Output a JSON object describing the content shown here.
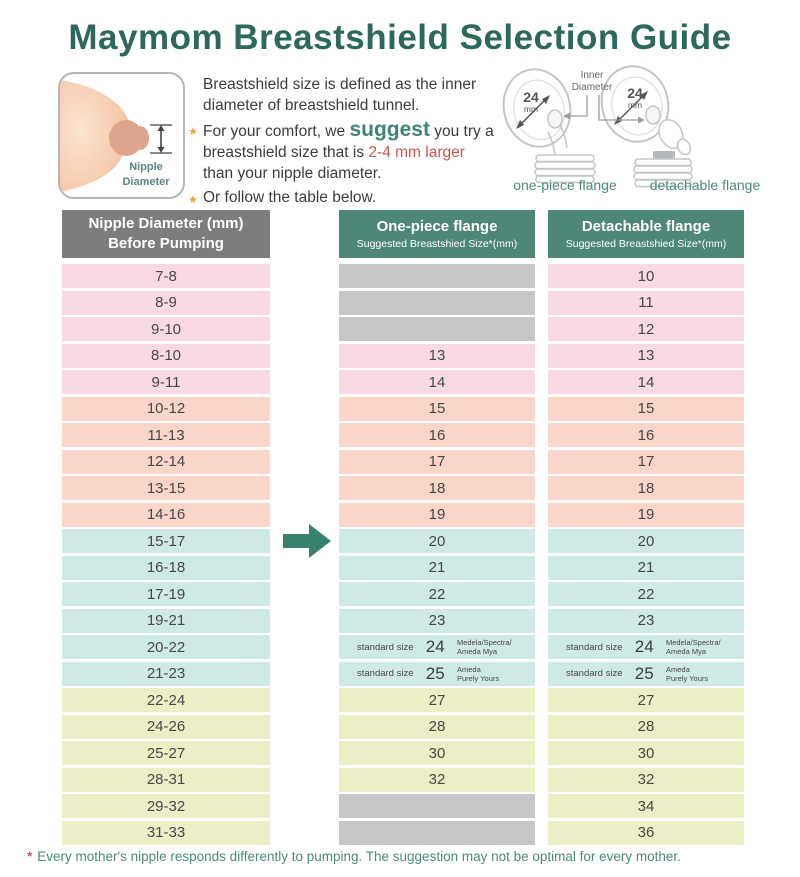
{
  "title": "Maymom Breastshield Selection Guide",
  "colors": {
    "title_teal": "#2d685c",
    "accent_teal": "#3f8477",
    "accent_teal2": "#4b8a7c",
    "accent_red": "#c9574e",
    "star_orange": "#f1a43c",
    "header_gray": "#7d7d7d",
    "header_teal": "#4e8778",
    "row_pink": "#f9d9e5",
    "row_peach": "#f9d6c9",
    "row_blue": "#cfe9e6",
    "row_yellow": "#eceec6",
    "cell_gray": "#c7c7c7",
    "arrow_teal": "#37816f"
  },
  "intro": {
    "nipple_label": "Nipple\nDiameter",
    "bullet_char": "★",
    "p1": "Breastshield size is defined as the inner diameter of breastshield tunnel.",
    "p2_parts": {
      "before": "For your comfort, we ",
      "suggest": "suggest",
      "mid": " you try a breastshield size that is ",
      "highlight": "2-4 mm larger",
      "after": " than your nipple diameter."
    },
    "p3": "Or follow the table below."
  },
  "flanges": {
    "size_label": "24",
    "size_unit": "mm",
    "inner_diameter_label": "Inner\nDiameter",
    "left_caption": "one-piece flange",
    "right_caption": "detachable flange"
  },
  "table": {
    "col1_header": "Nipple Diameter (mm)\nBefore Pumping",
    "col2_header": {
      "title": "One-piece flange",
      "subtitle": "Suggested Breastshied Size*(mm)"
    },
    "col3_header": {
      "title": "Detachable flange",
      "subtitle": "Suggested Breastshied Size*(mm)"
    },
    "rows": [
      {
        "range": "7-8",
        "one_piece": null,
        "detachable": "10",
        "color": "pink"
      },
      {
        "range": "8-9",
        "one_piece": null,
        "detachable": "11",
        "color": "pink"
      },
      {
        "range": "9-10",
        "one_piece": null,
        "detachable": "12",
        "color": "pink"
      },
      {
        "range": "8-10",
        "one_piece": "13",
        "detachable": "13",
        "color": "pink"
      },
      {
        "range": "9-11",
        "one_piece": "14",
        "detachable": "14",
        "color": "pink"
      },
      {
        "range": "10-12",
        "one_piece": "15",
        "detachable": "15",
        "color": "peach"
      },
      {
        "range": "11-13",
        "one_piece": "16",
        "detachable": "16",
        "color": "peach"
      },
      {
        "range": "12-14",
        "one_piece": "17",
        "detachable": "17",
        "color": "peach"
      },
      {
        "range": "13-15",
        "one_piece": "18",
        "detachable": "18",
        "color": "peach"
      },
      {
        "range": "14-16",
        "one_piece": "19",
        "detachable": "19",
        "color": "peach"
      },
      {
        "range": "15-17",
        "one_piece": "20",
        "detachable": "20",
        "color": "blue"
      },
      {
        "range": "16-18",
        "one_piece": "21",
        "detachable": "21",
        "color": "blue"
      },
      {
        "range": "17-19",
        "one_piece": "22",
        "detachable": "22",
        "color": "blue"
      },
      {
        "range": "19-21",
        "one_piece": "23",
        "detachable": "23",
        "color": "blue"
      },
      {
        "range": "20-22",
        "one_piece": {
          "prefix": "standard size",
          "size": "24",
          "brand": "Medela/Spectra/\nAmeda Mya"
        },
        "detachable": {
          "prefix": "standard size",
          "size": "24",
          "brand": "Medela/Spectra/\nAmeda Mya"
        },
        "color": "blue"
      },
      {
        "range": "21-23",
        "one_piece": {
          "prefix": "standard size",
          "size": "25",
          "brand": "Ameda\nPurely Yours"
        },
        "detachable": {
          "prefix": "standard size",
          "size": "25",
          "brand": "Ameda\nPurely Yours"
        },
        "color": "blue"
      },
      {
        "range": "22-24",
        "one_piece": "27",
        "detachable": "27",
        "color": "yellow"
      },
      {
        "range": "24-26",
        "one_piece": "28",
        "detachable": "28",
        "color": "yellow"
      },
      {
        "range": "25-27",
        "one_piece": "30",
        "detachable": "30",
        "color": "yellow"
      },
      {
        "range": "28-31",
        "one_piece": "32",
        "detachable": "32",
        "color": "yellow"
      },
      {
        "range": "29-32",
        "one_piece": null,
        "detachable": "34",
        "color": "yellow"
      },
      {
        "range": "31-33",
        "one_piece": null,
        "detachable": "36",
        "color": "yellow"
      }
    ]
  },
  "footnote": {
    "asterisk": "*",
    "text": "Every mother's nipple responds differently to pumping. The suggestion may not be optimal for every mother."
  },
  "chart_data": {
    "type": "table",
    "title": "Maymom Breastshield Selection Guide",
    "columns": [
      "Nipple Diameter (mm) Before Pumping",
      "One-piece flange — Suggested Breastshied Size*(mm)",
      "Detachable flange — Suggested Breastshied Size*(mm)"
    ],
    "rows": [
      [
        "7-8",
        null,
        10
      ],
      [
        "8-9",
        null,
        11
      ],
      [
        "9-10",
        null,
        12
      ],
      [
        "8-10",
        13,
        13
      ],
      [
        "9-11",
        14,
        14
      ],
      [
        "10-12",
        15,
        15
      ],
      [
        "11-13",
        16,
        16
      ],
      [
        "12-14",
        17,
        17
      ],
      [
        "13-15",
        18,
        18
      ],
      [
        "14-16",
        19,
        19
      ],
      [
        "15-17",
        20,
        20
      ],
      [
        "16-18",
        21,
        21
      ],
      [
        "17-19",
        22,
        22
      ],
      [
        "19-21",
        23,
        23
      ],
      [
        "20-22",
        "24 (standard size — Medela/Spectra/Ameda Mya)",
        "24 (standard size — Medela/Spectra/Ameda Mya)"
      ],
      [
        "21-23",
        "25 (standard size — Ameda Purely Yours)",
        "25 (standard size — Ameda Purely Yours)"
      ],
      [
        "22-24",
        27,
        27
      ],
      [
        "24-26",
        28,
        28
      ],
      [
        "25-27",
        30,
        30
      ],
      [
        "28-31",
        32,
        32
      ],
      [
        "29-32",
        null,
        34
      ],
      [
        "31-33",
        null,
        36
      ]
    ]
  }
}
